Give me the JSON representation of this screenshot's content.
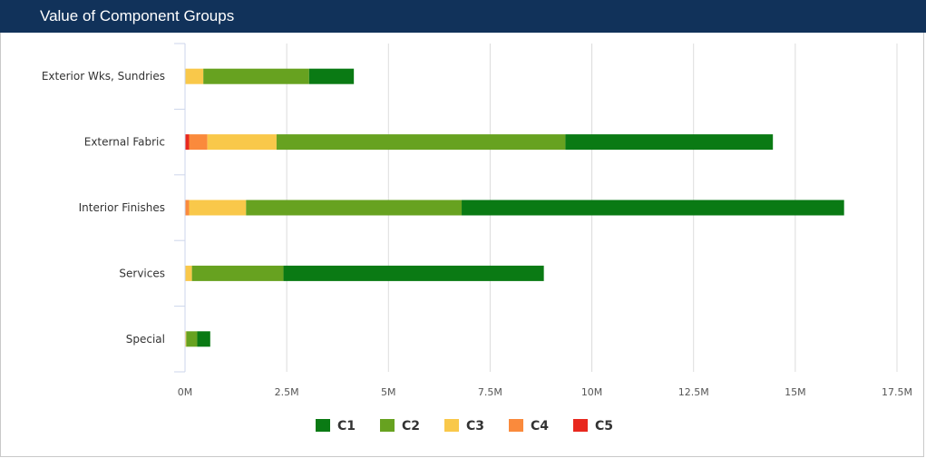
{
  "header": {
    "title": "Value of Component Groups"
  },
  "chart_data": {
    "type": "bar",
    "orientation": "horizontal",
    "stacked": true,
    "title": "Value of Component Groups",
    "categories": [
      "Exterior Wks, Sundries",
      "External Fabric",
      "Interior Finishes",
      "Services",
      "Special"
    ],
    "xlim": [
      0,
      17500000
    ],
    "xticks": [
      0,
      2500000,
      5000000,
      7500000,
      10000000,
      12500000,
      15000000,
      17500000
    ],
    "xtick_labels": [
      "0M",
      "2.5M",
      "5M",
      "7.5M",
      "10M",
      "12.5M",
      "15M",
      "17.5M"
    ],
    "grid": "vertical",
    "legend_position": "bottom",
    "series": [
      {
        "name": "C5",
        "color": "#e8281e",
        "values": [
          0,
          100000,
          0,
          0,
          0
        ]
      },
      {
        "name": "C4",
        "color": "#fa8a3c",
        "values": [
          0,
          450000,
          100000,
          0,
          0
        ]
      },
      {
        "name": "C3",
        "color": "#f9c84a",
        "values": [
          450000,
          1700000,
          1400000,
          170000,
          30000
        ]
      },
      {
        "name": "C2",
        "color": "#67a220",
        "values": [
          2600000,
          7100000,
          5300000,
          2250000,
          270000
        ]
      },
      {
        "name": "C1",
        "color": "#0a7a14",
        "values": [
          1100000,
          5100000,
          9400000,
          6400000,
          320000
        ]
      }
    ],
    "legend_order": [
      "C1",
      "C2",
      "C3",
      "C4",
      "C5"
    ]
  }
}
